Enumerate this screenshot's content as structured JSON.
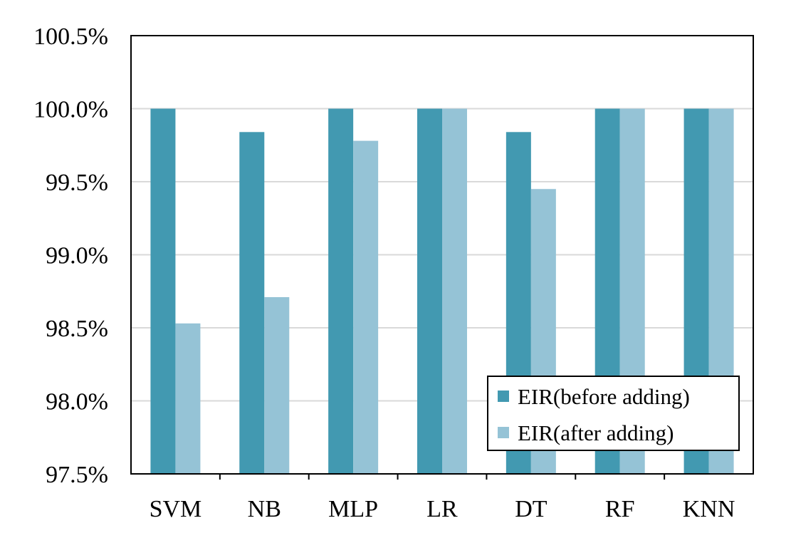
{
  "chart_data": {
    "type": "bar",
    "categories": [
      "SVM",
      "NB",
      "MLP",
      "LR",
      "DT",
      "RF",
      "KNN"
    ],
    "series": [
      {
        "name": "EIR(before adding)",
        "values": [
          100.0,
          99.84,
          100.0,
          100.0,
          99.84,
          100.0,
          100.0
        ]
      },
      {
        "name": "EIR(after adding)",
        "values": [
          98.53,
          98.71,
          99.78,
          100.0,
          99.45,
          100.0,
          100.0
        ]
      }
    ],
    "ylim": [
      97.5,
      100.5
    ],
    "yticks": [
      "97.5%",
      "98.0%",
      "98.5%",
      "99.0%",
      "99.5%",
      "100.0%",
      "100.5%"
    ],
    "ytick_values": [
      97.5,
      98.0,
      98.5,
      99.0,
      99.5,
      100.0,
      100.5
    ],
    "grid": true,
    "legend_position": "bottom-right",
    "colors": [
      "#4299b1",
      "#95c3d6"
    ]
  }
}
